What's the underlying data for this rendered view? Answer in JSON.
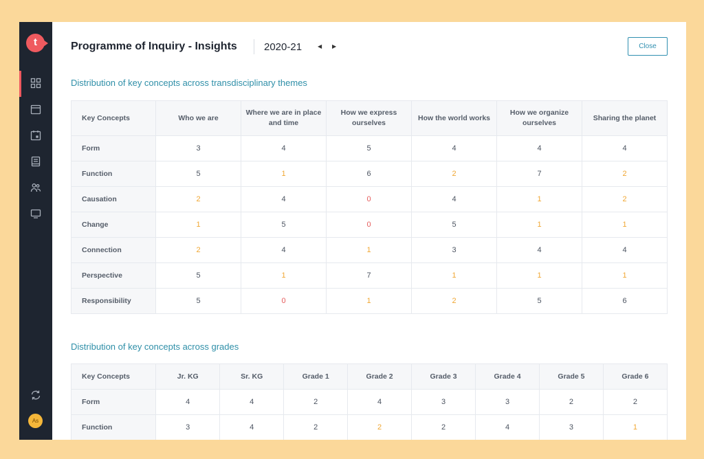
{
  "app": {
    "title": "Programme of Inquiry - Insights",
    "year": "2020-21",
    "close_label": "Close",
    "logo_letter": "t",
    "avatar_initials": "As"
  },
  "sidebar": {
    "icons": [
      "dashboard-icon",
      "calendar-icon",
      "planner-icon",
      "book-icon",
      "people-icon",
      "monitor-icon",
      "sync-icon"
    ]
  },
  "colors": {
    "accent": "#2f8fa8",
    "low": "#f0a631",
    "zero": "#e55a5a",
    "sidebar": "#1e2530",
    "brand": "#ef5a5f"
  },
  "themes_table": {
    "title": "Distribution of key concepts across transdisciplinary themes",
    "header": [
      "Key Concepts",
      "Who we are",
      "Where we are in place and time",
      "How we express ourselves",
      "How the world works",
      "How we organize ourselves",
      "Sharing the planet"
    ],
    "rows": [
      {
        "label": "Form",
        "values": [
          "3",
          "4",
          "5",
          "4",
          "4",
          "4"
        ]
      },
      {
        "label": "Function",
        "values": [
          "5",
          "1",
          "6",
          "2",
          "7",
          "2"
        ]
      },
      {
        "label": "Causation",
        "values": [
          "2",
          "4",
          "0",
          "4",
          "1",
          "2"
        ]
      },
      {
        "label": "Change",
        "values": [
          "1",
          "5",
          "0",
          "5",
          "1",
          "1"
        ]
      },
      {
        "label": "Connection",
        "values": [
          "2",
          "4",
          "1",
          "3",
          "4",
          "4"
        ]
      },
      {
        "label": "Perspective",
        "values": [
          "5",
          "1",
          "7",
          "1",
          "1",
          "1"
        ]
      },
      {
        "label": "Responsibility",
        "values": [
          "5",
          "0",
          "1",
          "2",
          "5",
          "6"
        ]
      }
    ]
  },
  "grades_table": {
    "title": "Distribution of key concepts across grades",
    "header": [
      "Key Concepts",
      "Jr. KG",
      "Sr. KG",
      "Grade 1",
      "Grade 2",
      "Grade 3",
      "Grade 4",
      "Grade 5",
      "Grade 6"
    ],
    "rows": [
      {
        "label": "Form",
        "values": [
          "4",
          "4",
          "2",
          "4",
          "3",
          "3",
          "2",
          "2"
        ]
      },
      {
        "label": "Function",
        "values": [
          "3",
          "4",
          "2",
          "2",
          "2",
          "4",
          "3",
          "1"
        ]
      }
    ]
  }
}
